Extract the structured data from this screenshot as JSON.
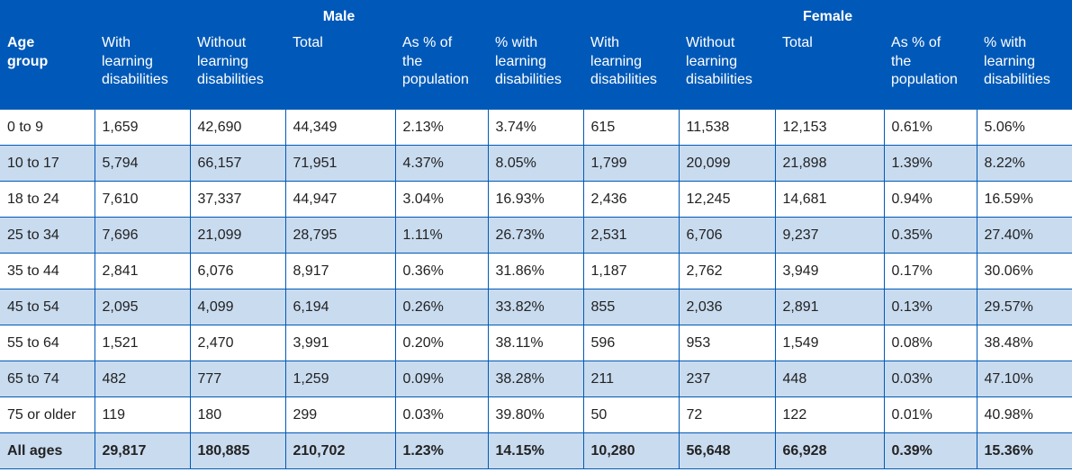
{
  "groups": {
    "male": "Male",
    "female": "Female"
  },
  "columns": {
    "age_group": [
      "Age",
      "group"
    ],
    "male": [
      [
        "With",
        "learning",
        "disabilities"
      ],
      [
        "Without",
        "learning",
        "disabilities"
      ],
      [
        "Total"
      ],
      [
        "As % of",
        "the",
        "population"
      ],
      [
        "% with",
        "learning",
        "disabilities"
      ]
    ],
    "female": [
      [
        "With",
        "learning",
        "disabilities"
      ],
      [
        "Without",
        "learning",
        "disabilities"
      ],
      [
        "Total"
      ],
      [
        "As % of",
        "the",
        "population"
      ],
      [
        "% with",
        "learning",
        "disabilities"
      ]
    ]
  },
  "rows": [
    [
      "0 to 9",
      "1,659",
      "42,690",
      "44,349",
      "2.13%",
      "3.74%",
      "615",
      "11,538",
      "12,153",
      "0.61%",
      "5.06%"
    ],
    [
      "10 to 17",
      "5,794",
      "66,157",
      "71,951",
      "4.37%",
      "8.05%",
      "1,799",
      "20,099",
      "21,898",
      "1.39%",
      "8.22%"
    ],
    [
      "18 to 24",
      "7,610",
      "37,337",
      "44,947",
      "3.04%",
      "16.93%",
      "2,436",
      "12,245",
      "14,681",
      "0.94%",
      "16.59%"
    ],
    [
      "25 to 34",
      "7,696",
      "21,099",
      "28,795",
      "1.11%",
      "26.73%",
      "2,531",
      "6,706",
      "9,237",
      "0.35%",
      "27.40%"
    ],
    [
      "35 to 44",
      "2,841",
      "6,076",
      "8,917",
      "0.36%",
      "31.86%",
      "1,187",
      "2,762",
      "3,949",
      "0.17%",
      "30.06%"
    ],
    [
      "45 to 54",
      "2,095",
      "4,099",
      "6,194",
      "0.26%",
      "33.82%",
      "855",
      "2,036",
      "2,891",
      "0.13%",
      "29.57%"
    ],
    [
      "55 to 64",
      "1,521",
      "2,470",
      "3,991",
      "0.20%",
      "38.11%",
      "596",
      "953",
      "1,549",
      "0.08%",
      "38.48%"
    ],
    [
      "65 to 74",
      "482",
      "777",
      "1,259",
      "0.09%",
      "38.28%",
      "211",
      "237",
      "448",
      "0.03%",
      "47.10%"
    ],
    [
      "75 or older",
      "119",
      "180",
      "299",
      "0.03%",
      "39.80%",
      "50",
      "72",
      "122",
      "0.01%",
      "40.98%"
    ]
  ],
  "total_row": [
    "All ages",
    "29,817",
    "180,885",
    "210,702",
    "1.23%",
    "14.15%",
    "10,280",
    "56,648",
    "66,928",
    "0.39%",
    "15.36%"
  ],
  "colors": {
    "header_bg": "#0059b8",
    "stripe_bg": "#c9dbef",
    "border": "#0059b8"
  }
}
